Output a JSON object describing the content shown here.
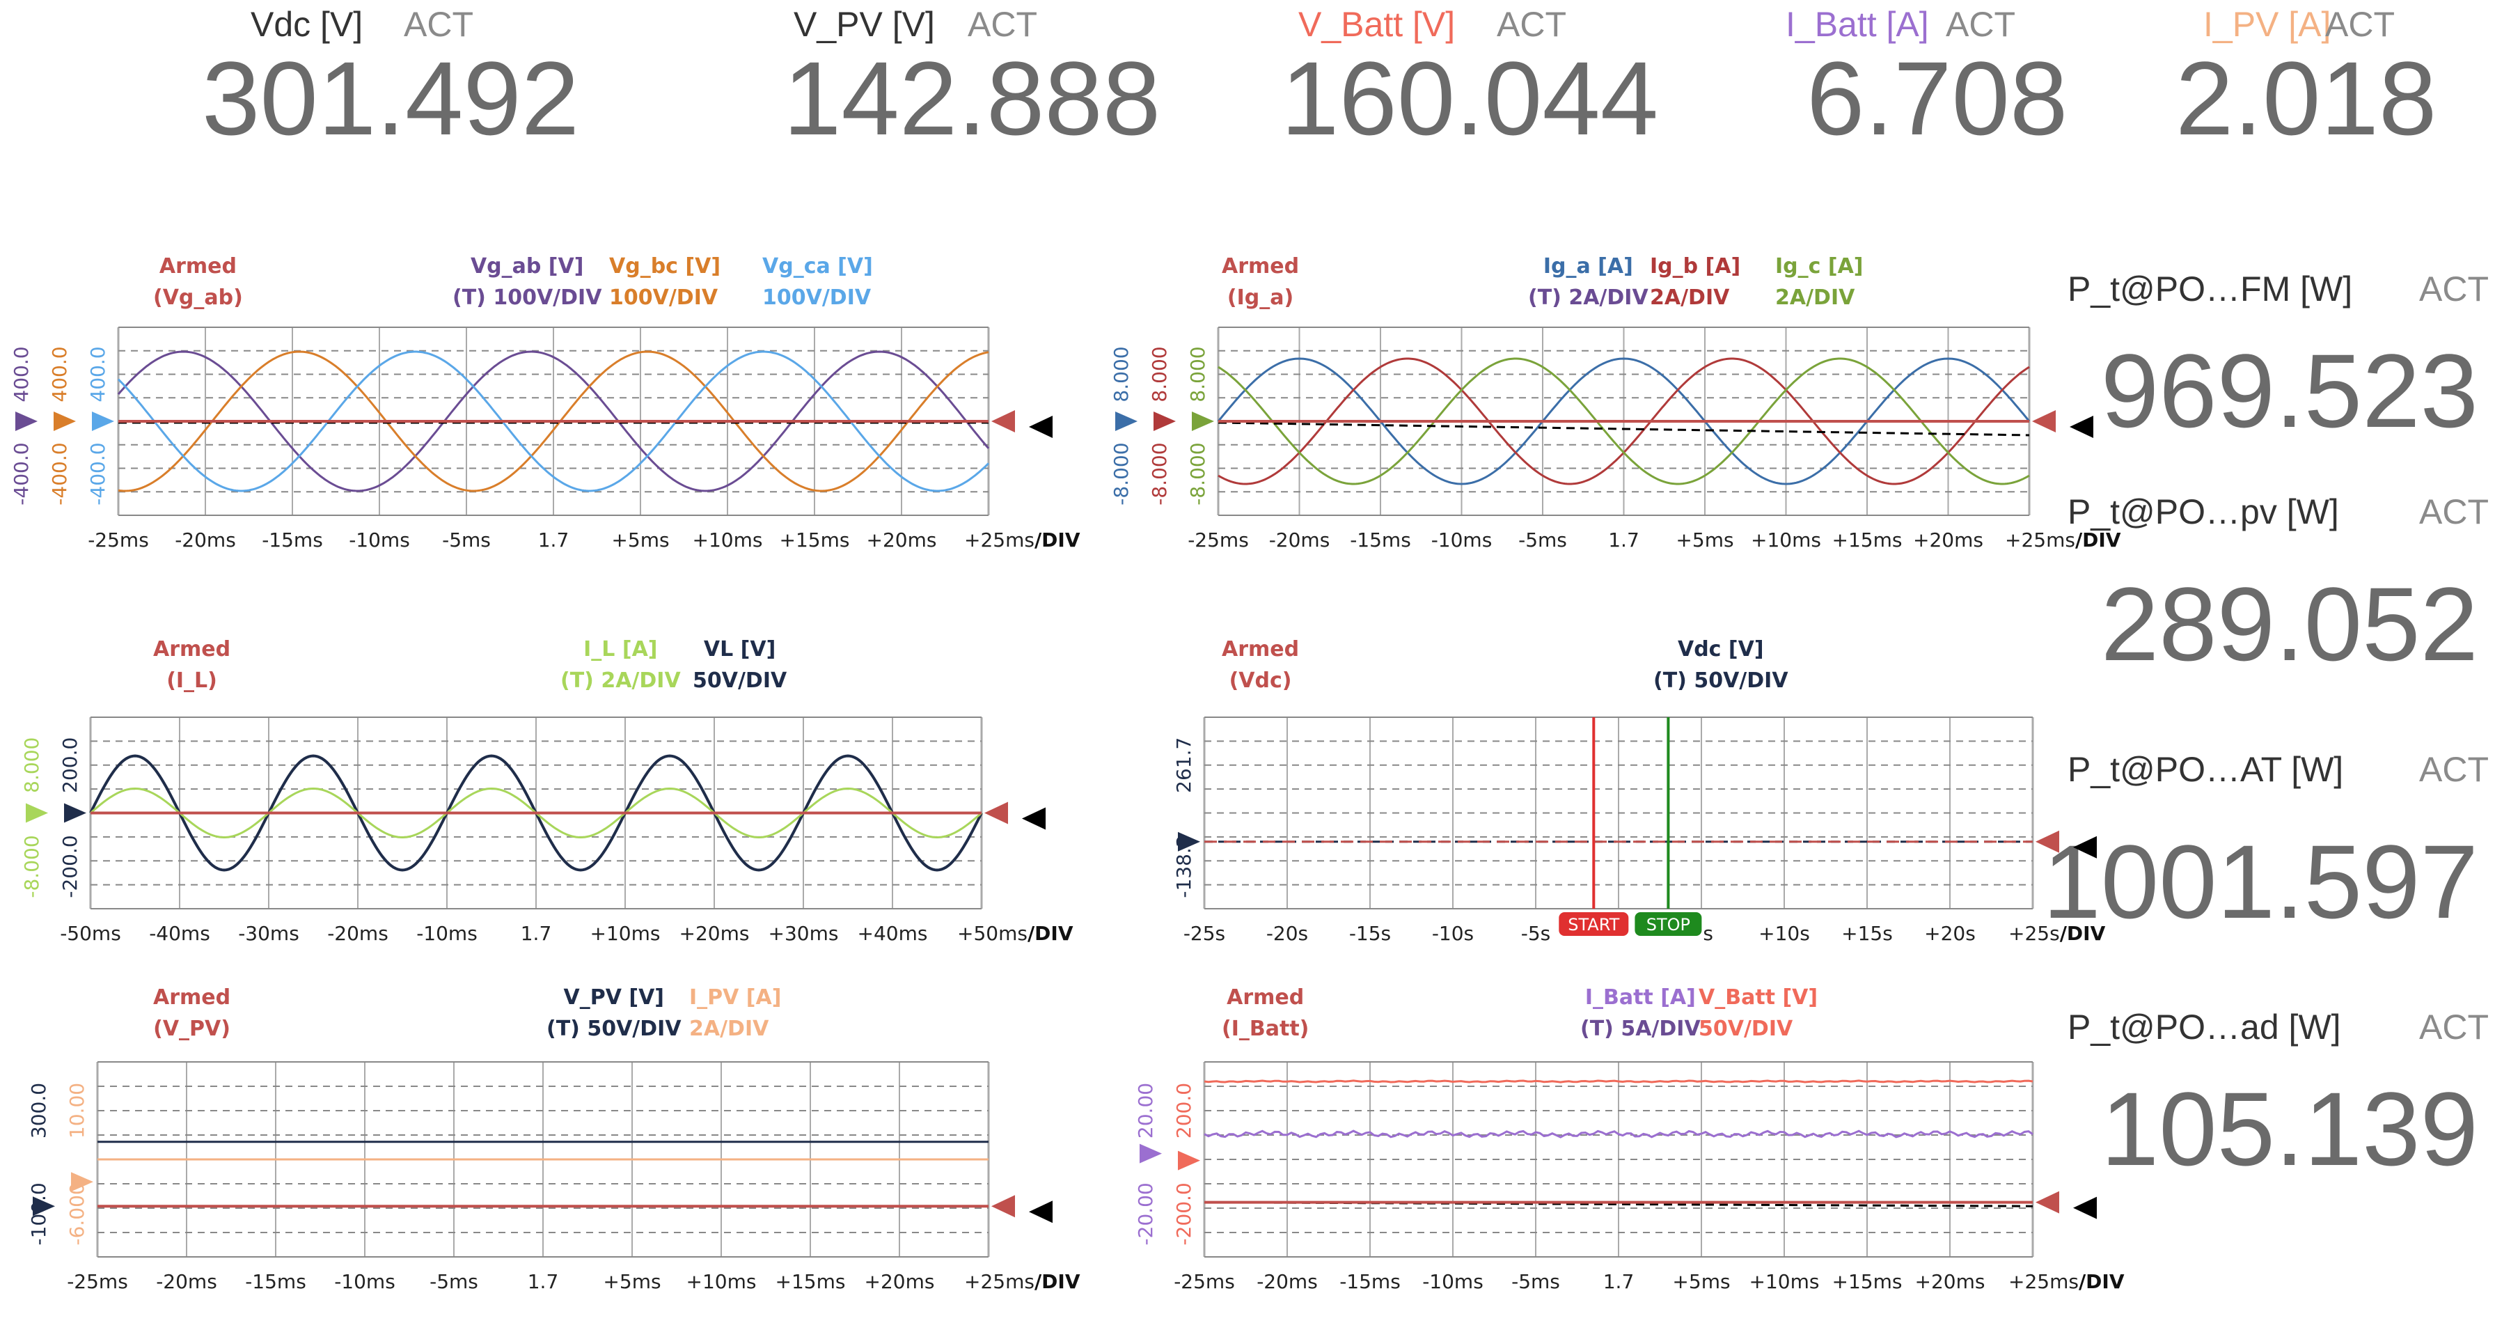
{
  "colors": {
    "red": "#c0504d",
    "purple": "#6a4c93",
    "orange": "#d97e2a",
    "lightblue": "#5aa7e8",
    "blue": "#3b6ea8",
    "darkred": "#b03a3a",
    "green": "#7aa33a",
    "lightgreen": "#a8d65a",
    "navy": "#1f2d4a",
    "salmon": "#f08a80",
    "violet": "#9b6fd0",
    "peach": "#f4b183",
    "gray": "#6b6b6b"
  },
  "top_meters": [
    {
      "label": "Vdc [V]",
      "act": "ACT",
      "value": "301.492",
      "color": "#333333"
    },
    {
      "label": "V_PV [V]",
      "act": "ACT",
      "value": "142.888",
      "color": "#333333"
    },
    {
      "label": "V_Batt [V]",
      "act": "ACT",
      "value": "160.044",
      "color": "#f06a5a"
    },
    {
      "label": "I_Batt [A]",
      "act": "ACT",
      "value": "6.708",
      "color": "#9b6fd0"
    },
    {
      "label": "I_PV [A]",
      "act": "ACT",
      "value": "2.018",
      "color": "#f4b183"
    }
  ],
  "side_meters": [
    {
      "label": "P_t@PO…FM [W]",
      "act": "ACT",
      "value": "969.523"
    },
    {
      "label": "P_t@PO…pv [W]",
      "act": "ACT",
      "value": "289.052"
    },
    {
      "label": "P_t@PO…AT [W]",
      "act": "ACT",
      "value": "1001.597"
    },
    {
      "label": "P_t@PO…ad [W]",
      "act": "ACT",
      "value": "105.139"
    }
  ],
  "scopes": [
    {
      "armed": "Armed",
      "source": "(Vg_ab)",
      "channels": [
        {
          "name": "Vg_ab [V]",
          "scale": "(T) 100V/DIV",
          "color": "#6a4c93"
        },
        {
          "name": "Vg_bc [V]",
          "scale": "100V/DIV",
          "color": "#d97e2a"
        },
        {
          "name": "Vg_ca [V]",
          "scale": "100V/DIV",
          "color": "#5aa7e8"
        }
      ],
      "ylabels": [
        {
          "text": "400.0",
          "color": "#6a4c93"
        },
        {
          "text": "-400.0",
          "color": "#6a4c93"
        },
        {
          "text": "400.0",
          "color": "#d97e2a"
        },
        {
          "text": "-400.0",
          "color": "#d97e2a"
        },
        {
          "text": "400.0",
          "color": "#5aa7e8"
        },
        {
          "text": "-400.0",
          "color": "#5aa7e8"
        }
      ],
      "xticks": [
        "-25ms",
        "-20ms",
        "-15ms",
        "-10ms",
        "-5ms",
        "1.7",
        "+5ms",
        "+10ms",
        "+15ms",
        "+20ms",
        "+25ms/DIV"
      ]
    },
    {
      "armed": "Armed",
      "source": "(Ig_a)",
      "channels": [
        {
          "name": "Ig_a [A]",
          "scale": "(T) 2A/DIV",
          "color": "#3b6ea8"
        },
        {
          "name": "Ig_b [A]",
          "scale": "2A/DIV",
          "color": "#b03a3a"
        },
        {
          "name": "Ig_c [A]",
          "scale": "2A/DIV",
          "color": "#7aa33a"
        }
      ],
      "ylabels": [
        {
          "text": "8.000",
          "color": "#3b6ea8"
        },
        {
          "text": "-8.000",
          "color": "#3b6ea8"
        },
        {
          "text": "8.000",
          "color": "#b03a3a"
        },
        {
          "text": "-8.000",
          "color": "#b03a3a"
        },
        {
          "text": "8.000",
          "color": "#7aa33a"
        },
        {
          "text": "-8.000",
          "color": "#7aa33a"
        }
      ],
      "xticks": [
        "-25ms",
        "-20ms",
        "-15ms",
        "-10ms",
        "-5ms",
        "1.7",
        "+5ms",
        "+10ms",
        "+15ms",
        "+20ms",
        "+25ms/DIV"
      ]
    },
    {
      "armed": "Armed",
      "source": "(I_L)",
      "channels": [
        {
          "name": "I_L [A]",
          "scale": "(T) 2A/DIV",
          "color": "#a8d65a"
        },
        {
          "name": "VL [V]",
          "scale": "50V/DIV",
          "color": "#1f2d4a"
        }
      ],
      "ylabels": [
        {
          "text": "8.000",
          "color": "#a8d65a"
        },
        {
          "text": "-8.000",
          "color": "#a8d65a"
        },
        {
          "text": "200.0",
          "color": "#1f2d4a"
        },
        {
          "text": "-200.0",
          "color": "#1f2d4a"
        }
      ],
      "xticks": [
        "-50ms",
        "-40ms",
        "-30ms",
        "-20ms",
        "-10ms",
        "1.7",
        "+10ms",
        "+20ms",
        "+30ms",
        "+40ms",
        "+50ms/DIV"
      ]
    },
    {
      "armed": "Armed",
      "source": "(Vdc)",
      "channels": [
        {
          "name": "Vdc [V]",
          "scale": "(T) 50V/DIV",
          "color": "#1f2d4a"
        }
      ],
      "ylabels": [
        {
          "text": "261.7",
          "color": "#1f2d4a"
        },
        {
          "text": "-138.3",
          "color": "#1f2d4a"
        }
      ],
      "xticks": [
        "-25s",
        "-20s",
        "-15s",
        "-10s",
        "-5s",
        "",
        "",
        "+10s",
        "+15s",
        "+20s",
        "+25s/DIV"
      ],
      "start_label": "START",
      "stop_label": "STOP"
    },
    {
      "armed": "Armed",
      "source": "(V_PV)",
      "channels": [
        {
          "name": "V_PV [V]",
          "scale": "(T) 50V/DIV",
          "color": "#1f2d4a"
        },
        {
          "name": "I_PV [A]",
          "scale": "2A/DIV",
          "color": "#f4b183"
        }
      ],
      "ylabels": [
        {
          "text": "300.0",
          "color": "#1f2d4a"
        },
        {
          "text": "-100.0",
          "color": "#1f2d4a"
        },
        {
          "text": "10.00",
          "color": "#f4b183"
        },
        {
          "text": "-6.000",
          "color": "#f4b183"
        }
      ],
      "xticks": [
        "-25ms",
        "-20ms",
        "-15ms",
        "-10ms",
        "-5ms",
        "1.7",
        "+5ms",
        "+10ms",
        "+15ms",
        "+20ms",
        "+25ms/DIV"
      ]
    },
    {
      "armed": "Armed",
      "source": "(I_Batt)",
      "channels": [
        {
          "name": "I_Batt [A]",
          "scale": "(T) 5A/DIV",
          "color": "#9b6fd0"
        },
        {
          "name": "V_Batt [V]",
          "scale": "50V/DIV",
          "color": "#f06a5a"
        }
      ],
      "ylabels": [
        {
          "text": "20.00",
          "color": "#9b6fd0"
        },
        {
          "text": "-20.00",
          "color": "#9b6fd0"
        },
        {
          "text": "200.0",
          "color": "#f06a5a"
        },
        {
          "text": "-200.0",
          "color": "#f06a5a"
        }
      ],
      "xticks": [
        "-25ms",
        "-20ms",
        "-15ms",
        "-10ms",
        "-5ms",
        "1.7",
        "+5ms",
        "+10ms",
        "+15ms",
        "+20ms",
        "+25ms/DIV"
      ]
    }
  ]
}
